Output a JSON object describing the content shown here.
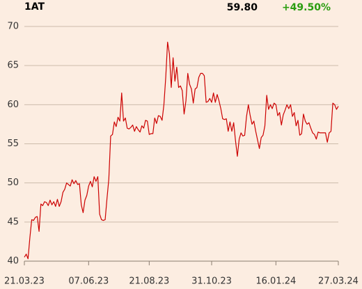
{
  "chart_data": {
    "type": "line",
    "title": "1AT",
    "last_price": "59.80",
    "change": "+49.50%",
    "change_color": "#2a9d0f",
    "categories": [
      "21.03.23",
      null,
      null,
      null,
      null,
      null,
      null,
      null,
      null,
      null,
      null,
      null,
      null,
      null,
      null,
      null,
      null,
      null,
      null,
      null,
      null,
      null,
      null,
      null,
      null,
      null,
      null,
      null,
      null,
      null,
      null,
      null,
      null,
      null,
      null,
      "07.06.23",
      null,
      null,
      null,
      null,
      null,
      null,
      null,
      null,
      null,
      null,
      null,
      null,
      null,
      null,
      null,
      null,
      null,
      null,
      null,
      null,
      null,
      null,
      null,
      null,
      null,
      null,
      null,
      null,
      null,
      null,
      null,
      null,
      "21.08.23",
      null,
      null,
      null,
      null,
      null,
      null,
      null,
      null,
      null,
      null,
      null,
      null,
      null,
      null,
      null,
      null,
      null,
      null,
      null,
      null,
      null,
      null,
      null,
      null,
      null,
      null,
      null,
      null,
      null,
      null,
      null,
      null,
      null,
      "31.10.23",
      null,
      null,
      null,
      null,
      null,
      null,
      null,
      null,
      null,
      null,
      null,
      null,
      null,
      null,
      null,
      null,
      null,
      null,
      null,
      null,
      null,
      null,
      null,
      null,
      null,
      null,
      null,
      null,
      null,
      null,
      null,
      null,
      null,
      null,
      "16.01.24",
      null,
      null,
      null,
      null,
      null,
      null,
      null,
      null,
      null,
      null,
      null,
      null,
      null,
      null,
      null,
      null,
      null,
      null,
      null,
      null,
      null,
      null,
      null,
      null,
      null,
      null,
      null,
      null,
      null,
      null,
      null,
      null,
      null,
      "27.03.24"
    ],
    "series": [
      {
        "color": "#cc0000",
        "values": [
          40.5,
          40.9,
          40.3,
          43,
          45.3,
          45.2,
          45.6,
          45.7,
          43.8,
          47.3,
          47.1,
          47.6,
          47.5,
          47.1,
          47.8,
          47.2,
          47.6,
          47.0,
          47.9,
          47.0,
          47.6,
          48.8,
          49.2,
          50.0,
          49.8,
          49.6,
          50.4,
          49.9,
          50.3,
          49.8,
          49.9,
          47.2,
          46.2,
          47.8,
          48.4,
          49.6,
          50.2,
          49.5,
          50.8,
          50.2,
          50.8,
          46.0,
          45.3,
          45.2,
          45.3,
          48.0,
          50.5,
          56.0,
          56.2,
          57.8,
          57.2,
          58.4,
          57.9,
          61.5,
          57.9,
          58.3,
          57.0,
          56.9,
          57.1,
          57.4,
          56.6,
          57.2,
          56.8,
          56.5,
          57.3,
          57.0,
          58.0,
          57.9,
          56.2,
          56.3,
          56.3,
          58.3,
          57.6,
          58.6,
          58.5,
          58.0,
          60.0,
          63.5,
          68.0,
          66.5,
          62.2,
          66.0,
          63.0,
          64.8,
          62.2,
          62.4,
          61.8,
          58.8,
          60.5,
          64.0,
          62.6,
          62.0,
          60.2,
          62.0,
          62.2,
          63.5,
          64.0,
          64.0,
          63.7,
          60.3,
          60.4,
          60.8,
          60.3,
          61.5,
          60.3,
          61.3,
          60.5,
          59.5,
          58.2,
          58.1,
          58.2,
          56.6,
          57.8,
          56.6,
          57.7,
          55.4,
          53.4,
          55.6,
          56.4,
          56.0,
          56.1,
          58.5,
          60.0,
          58.6,
          57.5,
          57.9,
          56.6,
          55.5,
          54.4,
          55.8,
          56.1,
          57.3,
          61.2,
          59.4,
          60.0,
          59.5,
          60.2,
          60.0,
          58.6,
          59.0,
          57.4,
          58.7,
          59.3,
          60.0,
          59.5,
          60.0,
          58.5,
          59.0,
          57.3,
          58.0,
          56.1,
          56.3,
          58.8,
          57.9,
          57.5,
          57.7,
          57.0,
          56.4,
          56.2,
          55.6,
          56.5,
          56.4,
          56.4,
          56.4,
          56.4,
          55.2,
          56.4,
          56.6,
          60.2,
          60.0,
          59.4,
          59.8
        ]
      }
    ],
    "ylim": [
      40,
      70
    ],
    "yticks": [
      40,
      45,
      50,
      55,
      60,
      65,
      70
    ],
    "grid": true
  }
}
